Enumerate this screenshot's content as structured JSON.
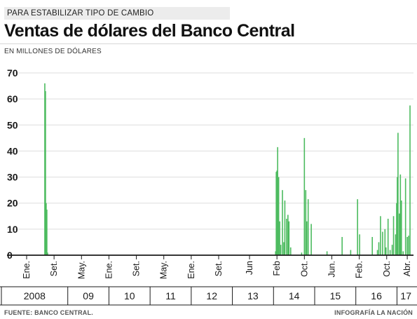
{
  "header": {
    "kicker": "PARA ESTABILIZAR TIPO DE CAMBIO",
    "title": "Ventas de dólares del Banco Central",
    "unit": "EN MILLONES DE DÓLARES"
  },
  "footer": {
    "source": "FUENTE: BANCO CENTRAL.",
    "credit": "INFOGRAFÍA LA NACIÓN"
  },
  "colors": {
    "bar": "#4cbb5f",
    "axis": "#1a1a1a",
    "grid": "#dddddd",
    "text": "#1a1a1a"
  },
  "chart_data": {
    "type": "bar",
    "ylim": [
      0,
      70
    ],
    "yticks": [
      0,
      10,
      20,
      30,
      40,
      50,
      60,
      70
    ],
    "grid": true,
    "xlim": [
      0,
      152
    ],
    "month_ticks": [
      {
        "label": "Ene.",
        "x": 0
      },
      {
        "label": "Set.",
        "x": 8
      },
      {
        "label": "May.",
        "x": 16
      },
      {
        "label": "Ene.",
        "x": 24
      },
      {
        "label": "Set.",
        "x": 32
      },
      {
        "label": "May.",
        "x": 40
      },
      {
        "label": "Ene.",
        "x": 48
      },
      {
        "label": "Set.",
        "x": 56
      },
      {
        "label": "Jun",
        "x": 65
      },
      {
        "label": "Feb",
        "x": 73
      },
      {
        "label": "Oct.",
        "x": 81
      },
      {
        "label": "Jun.",
        "x": 89
      },
      {
        "label": "Feb.",
        "x": 97
      },
      {
        "label": "Oct.",
        "x": 105
      },
      {
        "label": "Abr.",
        "x": 111
      }
    ],
    "year_ticks": [
      {
        "label": "2008",
        "x0": 0,
        "x1": 12
      },
      {
        "label": "09",
        "x0": 12,
        "x1": 24
      },
      {
        "label": "10",
        "x0": 24,
        "x1": 36
      },
      {
        "label": "11",
        "x0": 36,
        "x1": 48
      },
      {
        "label": "12",
        "x0": 48,
        "x1": 60
      },
      {
        "label": "13",
        "x0": 60,
        "x1": 72
      },
      {
        "label": "14",
        "x0": 72,
        "x1": 84
      },
      {
        "label": "15",
        "x0": 84,
        "x1": 96
      },
      {
        "label": "16",
        "x0": 96,
        "x1": 108
      },
      {
        "label": "17",
        "x0": 108,
        "x1": 112
      }
    ],
    "x": [
      5.3,
      5.5,
      5.7,
      5.9,
      6.1,
      72.6,
      72.8,
      73.0,
      73.2,
      73.5,
      73.8,
      74.1,
      74.6,
      75.0,
      75.3,
      75.8,
      76.2,
      76.5,
      77.0,
      80.2,
      81.0,
      81.4,
      81.7,
      82.1,
      83.0,
      87.6,
      92.0,
      94.5,
      96.5,
      97.1,
      100.8,
      102.3,
      102.7,
      103.2,
      103.8,
      104.5,
      104.8,
      105.4,
      106.0,
      106.6,
      107.0,
      107.6,
      107.9,
      108.1,
      108.3,
      108.7,
      109.0,
      109.3,
      109.8,
      110.5,
      111.0,
      111.4,
      111.8
    ],
    "values": [
      66,
      63,
      20,
      17.5,
      1,
      1.5,
      32,
      32.5,
      41.5,
      30,
      13,
      4,
      25,
      5,
      21,
      14,
      15.5,
      13,
      3,
      1,
      45,
      25,
      13,
      21.5,
      12,
      1.5,
      7,
      2,
      21.5,
      8,
      7,
      2,
      5,
      15,
      9,
      10,
      3,
      14,
      2,
      4,
      15,
      8,
      20,
      30,
      47,
      16,
      31,
      21,
      1.5,
      29.5,
      7,
      7.5,
      57.5
    ]
  }
}
